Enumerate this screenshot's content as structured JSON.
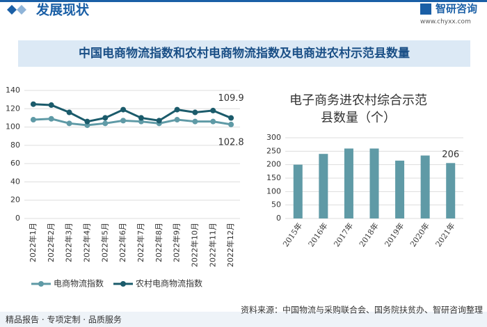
{
  "header": {
    "section_title": "发展现状",
    "brand": "智研咨询",
    "website": "www.chyxx.com"
  },
  "title": "中国电商物流指数和农村电商物流指数及电商进农村示范县数量",
  "chart_data": [
    {
      "type": "line",
      "categories": [
        "2022年1月",
        "2022年2月",
        "2022年3月",
        "2022年4月",
        "2022年5月",
        "2022年6月",
        "2022年7月",
        "2022年8月",
        "2022年9月",
        "2022年10月",
        "2022年11月",
        "2022年12月"
      ],
      "series": [
        {
          "name": "电商物流指数",
          "color": "#5f9aa6",
          "values": [
            108,
            109,
            104,
            102,
            104,
            107,
            106,
            104,
            108,
            106,
            106,
            102.8
          ]
        },
        {
          "name": "农村电商物流指数",
          "color": "#1b5b6b",
          "values": [
            125,
            124,
            116,
            106,
            110,
            119,
            110,
            107,
            119,
            116,
            118,
            109.9
          ]
        }
      ],
      "ylim": [
        0,
        140
      ],
      "yticks": [
        0,
        20,
        40,
        60,
        80,
        100,
        120,
        140
      ],
      "grid": true,
      "legend": "bottom"
    },
    {
      "type": "bar",
      "title": "电子商务进农村综合示范县数量（个）",
      "categories": [
        "2015年",
        "2016年",
        "2017年",
        "2018年",
        "2019年",
        "2020年",
        "2021年"
      ],
      "values": [
        200,
        240,
        260,
        260,
        215,
        234,
        206
      ],
      "color": "#5f9aa6",
      "ylim": [
        0,
        300
      ],
      "yticks": [
        0,
        50,
        100,
        150,
        200,
        250,
        300
      ],
      "grid": true
    }
  ],
  "footer": {
    "slogan": "精品报告 · 专项定制 · 品质服务",
    "source": "资料来源：中国物流与采购联合会、国务院扶贫办、智研咨询整理"
  }
}
